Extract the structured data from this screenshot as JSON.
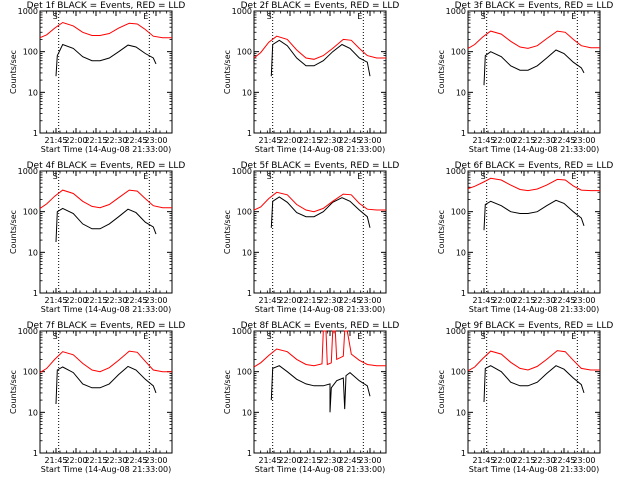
{
  "colors": {
    "events": "#000000",
    "lld": "#ff0000",
    "frame": "#000000"
  },
  "chart_data": [
    {
      "type": "line",
      "title": "Det 1f BLACK = Events, RED = LLD",
      "detector": "1f",
      "xlabel": "Start Time (14-Aug-08 21:33:00)",
      "ylabel": "Counts/sec",
      "yscale": "log",
      "ylim": [
        1,
        1000
      ],
      "xlim": [
        "21:33",
        "23:12"
      ],
      "x_ticks": [
        "21:45",
        "22:00",
        "22:15",
        "22:30",
        "22:45",
        "23:00"
      ],
      "y_ticks": [
        "1",
        "10",
        "100",
        "1000"
      ],
      "markers": [
        "S",
        "E"
      ],
      "vlines": [
        "21:47",
        "22:55"
      ],
      "series": [
        {
          "name": "Events",
          "color": "#000000",
          "x": [
            "21:45",
            "21:46",
            "21:50",
            "21:58",
            "22:05",
            "22:12",
            "22:18",
            "22:25",
            "22:32",
            "22:39",
            "22:45",
            "22:52",
            "22:58",
            "23:00"
          ],
          "y": [
            25,
            80,
            150,
            120,
            75,
            60,
            60,
            70,
            100,
            145,
            130,
            90,
            70,
            50
          ]
        },
        {
          "name": "LLD",
          "color": "#ff0000",
          "x": [
            "21:33",
            "21:38",
            "21:44",
            "21:50",
            "21:58",
            "22:05",
            "22:12",
            "22:18",
            "22:25",
            "22:32",
            "22:40",
            "22:46",
            "22:52",
            "22:58",
            "23:05",
            "23:12"
          ],
          "y": [
            220,
            260,
            380,
            520,
            430,
            300,
            250,
            250,
            280,
            380,
            500,
            480,
            350,
            240,
            220,
            220
          ]
        }
      ]
    },
    {
      "type": "line",
      "title": "Det 2f BLACK = Events, RED = LLD",
      "detector": "2f",
      "xlabel": "Start Time (14-Aug-08 21:33:00)",
      "ylabel": "Counts/sec",
      "yscale": "log",
      "ylim": [
        1,
        1000
      ],
      "xlim": [
        "21:33",
        "23:12"
      ],
      "x_ticks": [
        "21:45",
        "22:00",
        "22:15",
        "22:30",
        "22:45",
        "23:00"
      ],
      "y_ticks": [
        "1",
        "10",
        "100",
        "1000"
      ],
      "markers": [
        "S",
        "E"
      ],
      "vlines": [
        "21:47",
        "22:55"
      ],
      "series": [
        {
          "name": "Events",
          "color": "#000000",
          "x": [
            "21:46",
            "21:47",
            "21:52",
            "21:58",
            "22:05",
            "22:12",
            "22:18",
            "22:25",
            "22:32",
            "22:39",
            "22:45",
            "22:52",
            "22:58",
            "23:00"
          ],
          "y": [
            25,
            150,
            190,
            140,
            70,
            45,
            45,
            60,
            100,
            150,
            120,
            70,
            55,
            25
          ]
        },
        {
          "name": "LLD",
          "color": "#ff0000",
          "x": [
            "21:33",
            "21:38",
            "21:44",
            "21:50",
            "21:58",
            "22:05",
            "22:12",
            "22:18",
            "22:25",
            "22:32",
            "22:40",
            "22:46",
            "22:52",
            "22:58",
            "23:05",
            "23:12"
          ],
          "y": [
            70,
            95,
            170,
            240,
            200,
            110,
            70,
            65,
            80,
            120,
            200,
            190,
            120,
            80,
            70,
            70
          ]
        }
      ]
    },
    {
      "type": "line",
      "title": "Det 3f BLACK = Events, RED = LLD",
      "detector": "3f",
      "xlabel": "Start Time (14-Aug-08 21:33:00)",
      "ylabel": "Counts/sec",
      "yscale": "log",
      "ylim": [
        1,
        1000
      ],
      "xlim": [
        "21:33",
        "23:12"
      ],
      "x_ticks": [
        "21:45",
        "22:00",
        "22:15",
        "22:30",
        "22:45",
        "23:00"
      ],
      "y_ticks": [
        "1",
        "10",
        "100",
        "1000"
      ],
      "markers": [
        "S",
        "E"
      ],
      "vlines": [
        "21:47",
        "22:55"
      ],
      "series": [
        {
          "name": "Events",
          "color": "#000000",
          "x": [
            "21:45",
            "21:46",
            "21:50",
            "21:58",
            "22:05",
            "22:12",
            "22:18",
            "22:25",
            "22:32",
            "22:39",
            "22:45",
            "22:52",
            "22:58",
            "23:00"
          ],
          "y": [
            15,
            80,
            100,
            75,
            45,
            35,
            35,
            45,
            70,
            110,
            90,
            55,
            40,
            30
          ]
        },
        {
          "name": "LLD",
          "color": "#ff0000",
          "x": [
            "21:33",
            "21:38",
            "21:44",
            "21:50",
            "21:58",
            "22:05",
            "22:12",
            "22:18",
            "22:25",
            "22:32",
            "22:40",
            "22:46",
            "22:52",
            "22:58",
            "23:05",
            "23:12"
          ],
          "y": [
            120,
            150,
            230,
            320,
            270,
            180,
            130,
            120,
            140,
            210,
            320,
            300,
            200,
            140,
            125,
            125
          ]
        }
      ]
    },
    {
      "type": "line",
      "title": "Det 4f BLACK = Events, RED = LLD",
      "detector": "4f",
      "xlabel": "Start Time (14-Aug-08 21:33:00)",
      "ylabel": "Counts/sec",
      "yscale": "log",
      "ylim": [
        1,
        1000
      ],
      "xlim": [
        "21:33",
        "23:12"
      ],
      "x_ticks": [
        "21:45",
        "22:00",
        "22:15",
        "22:30",
        "22:45",
        "23:00"
      ],
      "y_ticks": [
        "1",
        "10",
        "100",
        "1000"
      ],
      "markers": [
        "S",
        "E"
      ],
      "vlines": [
        "21:47",
        "22:55"
      ],
      "series": [
        {
          "name": "Events",
          "color": "#000000",
          "x": [
            "21:45",
            "21:46",
            "21:50",
            "21:58",
            "22:05",
            "22:12",
            "22:18",
            "22:25",
            "22:32",
            "22:39",
            "22:45",
            "22:52",
            "22:58",
            "23:00"
          ],
          "y": [
            18,
            100,
            120,
            90,
            50,
            38,
            38,
            50,
            75,
            115,
            95,
            55,
            42,
            28
          ]
        },
        {
          "name": "LLD",
          "color": "#ff0000",
          "x": [
            "21:33",
            "21:38",
            "21:44",
            "21:50",
            "21:58",
            "22:05",
            "22:12",
            "22:18",
            "22:25",
            "22:32",
            "22:40",
            "22:46",
            "22:52",
            "22:58",
            "23:05",
            "23:12"
          ],
          "y": [
            120,
            155,
            240,
            340,
            280,
            180,
            135,
            125,
            150,
            220,
            340,
            320,
            210,
            140,
            125,
            125
          ]
        }
      ]
    },
    {
      "type": "line",
      "title": "Det 5f BLACK = Events, RED = LLD",
      "detector": "5f",
      "xlabel": "Start Time (14-Aug-08 21:33:00)",
      "ylabel": "Counts/sec",
      "yscale": "log",
      "ylim": [
        1,
        1000
      ],
      "xlim": [
        "21:33",
        "23:12"
      ],
      "x_ticks": [
        "21:45",
        "22:00",
        "22:15",
        "22:30",
        "22:45",
        "23:00"
      ],
      "y_ticks": [
        "1",
        "10",
        "100",
        "1000"
      ],
      "markers": [
        "S",
        "E"
      ],
      "vlines": [
        "21:47",
        "22:55"
      ],
      "series": [
        {
          "name": "Events",
          "color": "#000000",
          "x": [
            "21:46",
            "21:47",
            "21:52",
            "21:58",
            "22:05",
            "22:12",
            "22:18",
            "22:25",
            "22:32",
            "22:39",
            "22:45",
            "22:52",
            "22:58",
            "23:00"
          ],
          "y": [
            40,
            180,
            230,
            170,
            95,
            75,
            75,
            100,
            170,
            220,
            180,
            110,
            75,
            40
          ]
        },
        {
          "name": "LLD",
          "color": "#ff0000",
          "x": [
            "21:33",
            "21:38",
            "21:44",
            "21:50",
            "21:58",
            "22:05",
            "22:12",
            "22:18",
            "22:25",
            "22:32",
            "22:40",
            "22:46",
            "22:52",
            "22:58",
            "23:05",
            "23:12"
          ],
          "y": [
            110,
            130,
            210,
            300,
            260,
            150,
            110,
            100,
            120,
            180,
            270,
            260,
            160,
            115,
            110,
            110
          ]
        }
      ]
    },
    {
      "type": "line",
      "title": "Det 6f BLACK = Events, RED = LLD",
      "detector": "6f",
      "xlabel": "Start Time (14-Aug-08 21:33:00)",
      "ylabel": "Counts/sec",
      "yscale": "log",
      "ylim": [
        1,
        1000
      ],
      "xlim": [
        "21:33",
        "23:12"
      ],
      "x_ticks": [
        "21:45",
        "22:00",
        "22:15",
        "22:30",
        "22:45",
        "23:00"
      ],
      "y_ticks": [
        "1",
        "10",
        "100",
        "1000"
      ],
      "markers": [
        "S",
        "E"
      ],
      "vlines": [
        "21:47",
        "22:55"
      ],
      "series": [
        {
          "name": "Events",
          "color": "#000000",
          "x": [
            "21:45",
            "21:46",
            "21:50",
            "21:58",
            "22:05",
            "22:12",
            "22:18",
            "22:25",
            "22:32",
            "22:39",
            "22:45",
            "22:52",
            "22:58",
            "23:00"
          ],
          "y": [
            35,
            150,
            180,
            140,
            100,
            90,
            90,
            100,
            140,
            190,
            160,
            100,
            70,
            45
          ]
        },
        {
          "name": "LLD",
          "color": "#ff0000",
          "x": [
            "21:33",
            "21:38",
            "21:44",
            "21:50",
            "21:58",
            "22:05",
            "22:12",
            "22:18",
            "22:25",
            "22:32",
            "22:40",
            "22:46",
            "22:52",
            "22:58",
            "23:05",
            "23:12"
          ],
          "y": [
            370,
            420,
            520,
            660,
            600,
            450,
            350,
            330,
            360,
            450,
            620,
            600,
            430,
            340,
            330,
            330
          ]
        }
      ]
    },
    {
      "type": "line",
      "title": "Det 7f BLACK = Events, RED = LLD",
      "detector": "7f",
      "xlabel": "Start Time (14-Aug-08 21:33:00)",
      "ylabel": "Counts/sec",
      "yscale": "log",
      "ylim": [
        1,
        1000
      ],
      "xlim": [
        "21:33",
        "23:12"
      ],
      "x_ticks": [
        "21:45",
        "22:00",
        "22:15",
        "22:30",
        "22:45",
        "23:00"
      ],
      "y_ticks": [
        "1",
        "10",
        "100",
        "1000"
      ],
      "markers": [
        "S",
        "E"
      ],
      "vlines": [
        "21:47",
        "22:55"
      ],
      "series": [
        {
          "name": "Events",
          "color": "#000000",
          "x": [
            "21:45",
            "21:46",
            "21:50",
            "21:58",
            "22:05",
            "22:12",
            "22:18",
            "22:25",
            "22:32",
            "22:39",
            "22:45",
            "22:52",
            "22:58",
            "23:00"
          ],
          "y": [
            16,
            110,
            130,
            95,
            50,
            40,
            40,
            50,
            85,
            135,
            110,
            65,
            45,
            30
          ]
        },
        {
          "name": "LLD",
          "color": "#ff0000",
          "x": [
            "21:33",
            "21:38",
            "21:44",
            "21:50",
            "21:58",
            "22:05",
            "22:12",
            "22:18",
            "22:25",
            "22:32",
            "22:40",
            "22:46",
            "22:52",
            "22:58",
            "23:05",
            "23:12"
          ],
          "y": [
            95,
            120,
            200,
            310,
            260,
            160,
            110,
            100,
            125,
            190,
            320,
            300,
            180,
            110,
            100,
            100
          ]
        }
      ]
    },
    {
      "type": "line",
      "title": "Det 8f BLACK = Events, RED = LLD",
      "detector": "8f",
      "xlabel": "Start Time (14-Aug-08 21:33:00)",
      "ylabel": "Counts/sec",
      "yscale": "log",
      "ylim": [
        1,
        1000
      ],
      "xlim": [
        "21:33",
        "23:12"
      ],
      "x_ticks": [
        "21:45",
        "22:00",
        "22:15",
        "22:30",
        "22:45",
        "23:00"
      ],
      "y_ticks": [
        "1",
        "10",
        "100",
        "1000"
      ],
      "markers": [
        "S",
        "E"
      ],
      "vlines": [
        "21:47",
        "22:55"
      ],
      "series": [
        {
          "name": "Events",
          "color": "#000000",
          "x": [
            "21:46",
            "21:47",
            "21:52",
            "21:58",
            "22:05",
            "22:12",
            "22:18",
            "22:25",
            "22:30",
            "22:30",
            "22:31",
            "22:35",
            "22:40",
            "22:41",
            "22:42",
            "22:45",
            "22:52",
            "22:58",
            "23:00"
          ],
          "y": [
            20,
            120,
            140,
            100,
            65,
            50,
            45,
            45,
            50,
            10,
            40,
            60,
            70,
            12,
            80,
            95,
            60,
            45,
            25
          ]
        },
        {
          "name": "LLD",
          "color": "#ff0000",
          "x": [
            "21:33",
            "21:38",
            "21:44",
            "21:50",
            "21:58",
            "22:05",
            "22:12",
            "22:18",
            "22:24",
            "22:25",
            "22:27",
            "22:28",
            "22:31",
            "22:32",
            "22:34",
            "22:35",
            "22:40",
            "22:41",
            "22:43",
            "22:46",
            "22:52",
            "22:58",
            "23:05",
            "23:12"
          ],
          "y": [
            130,
            165,
            250,
            360,
            310,
            200,
            150,
            140,
            155,
            1000,
            1000,
            150,
            165,
            1000,
            1000,
            200,
            240,
            1000,
            1000,
            270,
            190,
            150,
            140,
            140
          ]
        }
      ]
    },
    {
      "type": "line",
      "title": "Det 9f BLACK = Events, RED = LLD",
      "detector": "9f",
      "xlabel": "Start Time (14-Aug-08 21:33:00)",
      "ylabel": "Counts/sec",
      "yscale": "log",
      "ylim": [
        1,
        1000
      ],
      "xlim": [
        "21:33",
        "23:12"
      ],
      "x_ticks": [
        "21:45",
        "22:00",
        "22:15",
        "22:30",
        "22:45",
        "23:00"
      ],
      "y_ticks": [
        "1",
        "10",
        "100",
        "1000"
      ],
      "markers": [
        "S",
        "E"
      ],
      "vlines": [
        "21:47",
        "22:55"
      ],
      "series": [
        {
          "name": "Events",
          "color": "#000000",
          "x": [
            "21:45",
            "21:46",
            "21:50",
            "21:58",
            "22:05",
            "22:12",
            "22:18",
            "22:25",
            "22:32",
            "22:39",
            "22:45",
            "22:52",
            "22:58",
            "23:00"
          ],
          "y": [
            18,
            120,
            140,
            100,
            55,
            45,
            45,
            55,
            90,
            140,
            115,
            70,
            48,
            30
          ]
        },
        {
          "name": "LLD",
          "color": "#ff0000",
          "x": [
            "21:33",
            "21:38",
            "21:44",
            "21:50",
            "21:58",
            "22:05",
            "22:12",
            "22:18",
            "22:25",
            "22:32",
            "22:40",
            "22:46",
            "22:52",
            "22:58",
            "23:05",
            "23:12"
          ],
          "y": [
            105,
            130,
            210,
            320,
            270,
            170,
            120,
            110,
            135,
            200,
            330,
            310,
            190,
            120,
            110,
            110
          ]
        }
      ]
    }
  ]
}
